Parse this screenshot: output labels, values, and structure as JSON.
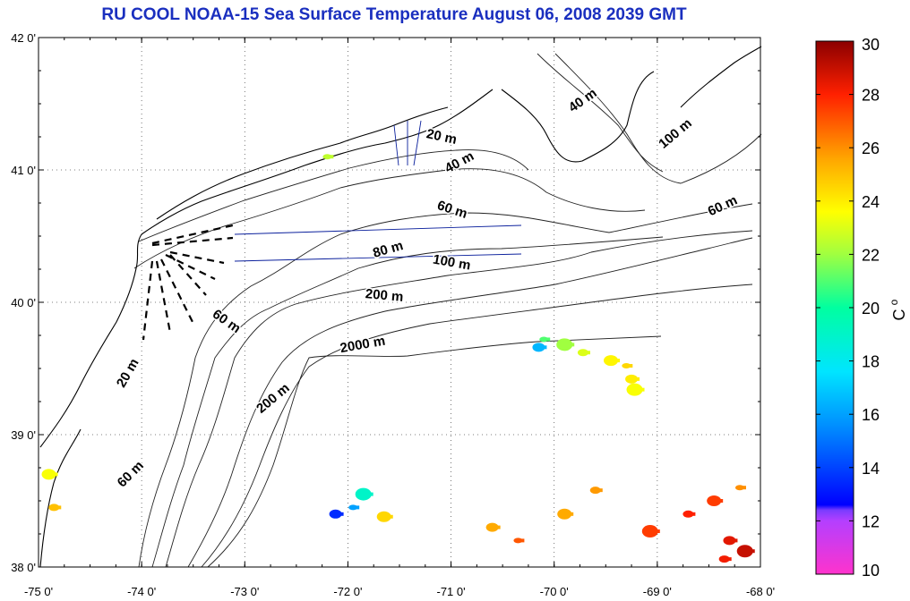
{
  "title": "RU COOL  NOAA-15 Sea Surface Temperature August 06, 2008 2039 GMT",
  "map": {
    "lon_range": [
      -75,
      -68
    ],
    "lat_range": [
      38,
      42
    ],
    "lon_ticks": [
      "-75 0'",
      "-74 0'",
      "-73 0'",
      "-72 0'",
      "-71 0'",
      "-70 0'",
      "-69 0'",
      "-68 0'"
    ],
    "lat_ticks": [
      "38 0'",
      "39 0'",
      "40 0'",
      "41 0'",
      "42 0'"
    ],
    "grid": "dotted",
    "contour_labels": [
      {
        "text": "20 m",
        "lon": -71.1,
        "lat": 41.22,
        "angle": 12
      },
      {
        "text": "40 m",
        "lon": -69.7,
        "lat": 41.5,
        "angle": -35
      },
      {
        "text": "40 m",
        "lon": -70.9,
        "lat": 41.03,
        "angle": -28
      },
      {
        "text": "100 m",
        "lon": -68.8,
        "lat": 41.25,
        "angle": -40
      },
      {
        "text": "60 m",
        "lon": -71.0,
        "lat": 40.67,
        "angle": 18
      },
      {
        "text": "60 m",
        "lon": -68.35,
        "lat": 40.7,
        "angle": -25
      },
      {
        "text": "80 m",
        "lon": -71.6,
        "lat": 40.37,
        "angle": -16
      },
      {
        "text": "100 m",
        "lon": -71.0,
        "lat": 40.27,
        "angle": 10
      },
      {
        "text": "200 m",
        "lon": -71.65,
        "lat": 40.02,
        "angle": 5
      },
      {
        "text": "2000 m",
        "lon": -71.85,
        "lat": 39.65,
        "angle": -10
      },
      {
        "text": "60 m",
        "lon": -73.2,
        "lat": 39.83,
        "angle": 35
      },
      {
        "text": "20 m",
        "lon": -74.1,
        "lat": 39.45,
        "angle": -60
      },
      {
        "text": "200 m",
        "lon": -72.7,
        "lat": 39.25,
        "angle": -40
      },
      {
        "text": "60 m",
        "lon": -74.08,
        "lat": 38.68,
        "angle": -45
      }
    ],
    "sst_patches": [
      {
        "lon": -70.1,
        "lat": 39.72,
        "temp": 21.0
      },
      {
        "lon": -70.15,
        "lat": 39.66,
        "temp": 16.5
      },
      {
        "lon": -69.9,
        "lat": 39.68,
        "temp": 22.0
      },
      {
        "lon": -69.72,
        "lat": 39.62,
        "temp": 23.0
      },
      {
        "lon": -69.45,
        "lat": 39.56,
        "temp": 23.8
      },
      {
        "lon": -69.3,
        "lat": 39.52,
        "temp": 24.5
      },
      {
        "lon": -69.25,
        "lat": 39.42,
        "temp": 24.0
      },
      {
        "lon": -69.22,
        "lat": 39.34,
        "temp": 23.5
      },
      {
        "lon": -69.6,
        "lat": 38.58,
        "temp": 25.8
      },
      {
        "lon": -69.9,
        "lat": 38.4,
        "temp": 25.5
      },
      {
        "lon": -70.35,
        "lat": 38.2,
        "temp": 27.0
      },
      {
        "lon": -70.6,
        "lat": 38.3,
        "temp": 25.5
      },
      {
        "lon": -69.07,
        "lat": 38.27,
        "temp": 27.5
      },
      {
        "lon": -68.7,
        "lat": 38.4,
        "temp": 28.0
      },
      {
        "lon": -68.45,
        "lat": 38.5,
        "temp": 27.5
      },
      {
        "lon": -68.2,
        "lat": 38.6,
        "temp": 26.0
      },
      {
        "lon": -68.3,
        "lat": 38.2,
        "temp": 28.5
      },
      {
        "lon": -68.15,
        "lat": 38.12,
        "temp": 29.0
      },
      {
        "lon": -68.35,
        "lat": 38.06,
        "temp": 28.2
      },
      {
        "lon": -71.65,
        "lat": 38.38,
        "temp": 24.5
      },
      {
        "lon": -71.95,
        "lat": 38.45,
        "temp": 16.0
      },
      {
        "lon": -72.12,
        "lat": 38.4,
        "temp": 13.5
      },
      {
        "lon": -71.85,
        "lat": 38.55,
        "temp": 19.0
      },
      {
        "lon": -74.85,
        "lat": 38.45,
        "temp": 25.0
      },
      {
        "lon": -74.9,
        "lat": 38.7,
        "temp": 23.5
      },
      {
        "lon": -72.2,
        "lat": 41.1,
        "temp": 22.5
      }
    ]
  },
  "colorbar": {
    "min": 10,
    "max": 30,
    "ticks": [
      "30",
      "28",
      "26",
      "24",
      "22",
      "20",
      "18",
      "16",
      "14",
      "12",
      "10"
    ],
    "unit": "C",
    "unit_superscript": "o"
  }
}
